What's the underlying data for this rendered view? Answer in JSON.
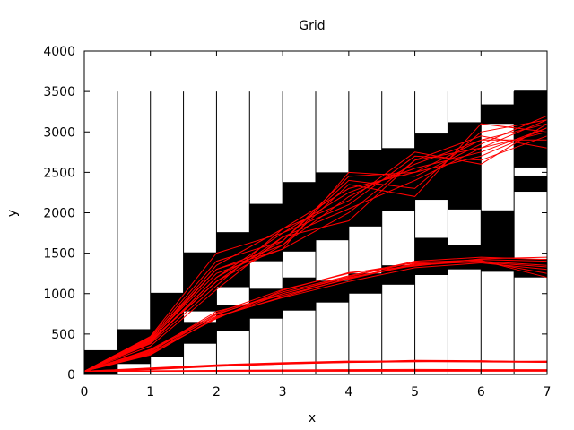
{
  "chart_data": {
    "type": "line",
    "title": "Grid",
    "xlabel": "x",
    "ylabel": "y",
    "xlim": [
      0,
      7
    ],
    "ylim": [
      0,
      4000
    ],
    "x_ticks": [
      "0",
      "1",
      "2",
      "3",
      "4",
      "5",
      "6",
      "7"
    ],
    "y_ticks": [
      "0",
      "500",
      "1000",
      "1500",
      "2000",
      "2500",
      "3000",
      "3500",
      "4000"
    ],
    "grid": {
      "cell_width": 0.5,
      "cell_height": 3500,
      "bands": [
        {
          "x": [
            0.0,
            0.5
          ],
          "black": [
            [
              0,
              300
            ]
          ]
        },
        {
          "x": [
            0.5,
            1.0
          ],
          "black": [
            [
              130,
              560
            ]
          ]
        },
        {
          "x": [
            1.0,
            1.5
          ],
          "black": [
            [
              220,
              1010
            ]
          ]
        },
        {
          "x": [
            1.5,
            2.0
          ],
          "black": [
            [
              380,
              650
            ],
            [
              780,
              1510
            ]
          ]
        },
        {
          "x": [
            2.0,
            2.5
          ],
          "black": [
            [
              540,
              860
            ],
            [
              1080,
              1760
            ]
          ]
        },
        {
          "x": [
            2.5,
            3.0
          ],
          "black": [
            [
              690,
              1060
            ],
            [
              1400,
              2110
            ]
          ]
        },
        {
          "x": [
            3.0,
            3.5
          ],
          "black": [
            [
              790,
              1200
            ],
            [
              1520,
              2380
            ]
          ]
        },
        {
          "x": [
            3.5,
            4.0
          ],
          "black": [
            [
              890,
              1160
            ],
            [
              1660,
              2500
            ]
          ]
        },
        {
          "x": [
            4.0,
            4.5
          ],
          "black": [
            [
              1000,
              1250
            ],
            [
              1830,
              2780
            ]
          ]
        },
        {
          "x": [
            4.5,
            5.0
          ],
          "black": [
            [
              1110,
              1350
            ],
            [
              2020,
              2800
            ]
          ]
        },
        {
          "x": [
            5.0,
            5.5
          ],
          "black": [
            [
              1230,
              1690
            ],
            [
              2160,
              2980
            ]
          ]
        },
        {
          "x": [
            5.5,
            6.0
          ],
          "black": [
            [
              1300,
              1600
            ],
            [
              2040,
              3120
            ]
          ]
        },
        {
          "x": [
            6.0,
            6.5
          ],
          "black": [
            [
              1270,
              2030
            ],
            [
              3100,
              3340
            ]
          ]
        },
        {
          "x": [
            6.5,
            7.0
          ],
          "black": [
            [
              1200,
              1430
            ],
            [
              2260,
              2460
            ],
            [
              2560,
              3510
            ]
          ]
        }
      ]
    },
    "series_color": "#ff0000",
    "series": [
      {
        "x": [
          0,
          1,
          2,
          3,
          4,
          5,
          6,
          7
        ],
        "y": [
          40,
          420,
          1150,
          1700,
          2050,
          2400,
          2800,
          3000
        ]
      },
      {
        "x": [
          0,
          1,
          2,
          3,
          4,
          5,
          6,
          7
        ],
        "y": [
          40,
          450,
          1300,
          1600,
          2200,
          2600,
          2900,
          3100
        ]
      },
      {
        "x": [
          0,
          1,
          2,
          3,
          4,
          5,
          6,
          7
        ],
        "y": [
          40,
          380,
          1100,
          1800,
          2300,
          2500,
          2700,
          3050
        ]
      },
      {
        "x": [
          0,
          1,
          2,
          3,
          4,
          5,
          6,
          7
        ],
        "y": [
          40,
          460,
          1400,
          1650,
          2400,
          2300,
          3000,
          3150
        ]
      },
      {
        "x": [
          0,
          1,
          2,
          3,
          4,
          5,
          6,
          7
        ],
        "y": [
          40,
          400,
          1200,
          1750,
          2100,
          2700,
          2650,
          2950
        ]
      },
      {
        "x": [
          0,
          1,
          2,
          3,
          4,
          5,
          6,
          7
        ],
        "y": [
          40,
          430,
          1250,
          1550,
          2500,
          2450,
          2850,
          3200
        ]
      },
      {
        "x": [
          0,
          1,
          2,
          3,
          4,
          5,
          6,
          7
        ],
        "y": [
          40,
          350,
          1050,
          1700,
          1900,
          2650,
          2950,
          2800
        ]
      },
      {
        "x": [
          0,
          1,
          2,
          3,
          4,
          5,
          6,
          7
        ],
        "y": [
          40,
          470,
          1500,
          1750,
          2250,
          2550,
          2750,
          3050
        ]
      },
      {
        "x": [
          0,
          1,
          2,
          3,
          4,
          5,
          6,
          7
        ],
        "y": [
          40,
          410,
          1150,
          1600,
          2350,
          2200,
          3100,
          3000
        ]
      },
      {
        "x": [
          0,
          1,
          2,
          3,
          4,
          5,
          6,
          7
        ],
        "y": [
          40,
          440,
          1350,
          1800,
          2150,
          2750,
          2600,
          3100
        ]
      },
      {
        "x": [
          0,
          1,
          2,
          3,
          4,
          5,
          6,
          7
        ],
        "y": [
          40,
          390,
          1200,
          1650,
          2450,
          2500,
          2900,
          2900
        ]
      },
      {
        "x": [
          0,
          1,
          2,
          3,
          4,
          5,
          6,
          7
        ],
        "y": [
          40,
          420,
          1300,
          1550,
          2000,
          2650,
          2800,
          3150
        ]
      },
      {
        "x": [
          0,
          1,
          2,
          3,
          4,
          5,
          6,
          7
        ],
        "y": [
          40,
          250,
          700,
          1000,
          1200,
          1350,
          1400,
          1350
        ]
      },
      {
        "x": [
          0,
          1,
          2,
          3,
          4,
          5,
          6,
          7
        ],
        "y": [
          40,
          280,
          760,
          1050,
          1250,
          1380,
          1420,
          1400
        ]
      },
      {
        "x": [
          0,
          1,
          2,
          3,
          4,
          5,
          6,
          7
        ],
        "y": [
          40,
          300,
          720,
          950,
          1150,
          1320,
          1380,
          1300
        ]
      },
      {
        "x": [
          0,
          1,
          2,
          3,
          4,
          5,
          6,
          7
        ],
        "y": [
          40,
          260,
          740,
          1020,
          1220,
          1400,
          1450,
          1420
        ]
      },
      {
        "x": [
          0,
          1,
          2,
          3,
          4,
          5,
          6,
          7
        ],
        "y": [
          40,
          290,
          780,
          980,
          1180,
          1360,
          1400,
          1250
        ]
      },
      {
        "x": [
          0,
          1,
          2,
          3,
          4,
          5,
          6,
          7
        ],
        "y": [
          40,
          270,
          690,
          1040,
          1260,
          1340,
          1430,
          1450
        ]
      },
      {
        "x": [
          0,
          1,
          2,
          3,
          4,
          5,
          6,
          7
        ],
        "y": [
          40,
          310,
          750,
          1000,
          1210,
          1390,
          1410,
          1200
        ]
      },
      {
        "x": [
          0,
          1,
          2,
          3,
          4,
          5,
          6,
          7
        ],
        "y": [
          40,
          240,
          710,
          960,
          1190,
          1370,
          1390,
          1330
        ]
      },
      {
        "x": [
          0,
          1,
          2,
          3,
          4,
          5,
          6,
          7
        ],
        "y": [
          40,
          70,
          110,
          135,
          150,
          160,
          155,
          150
        ]
      },
      {
        "x": [
          0,
          1,
          2,
          3,
          4,
          5,
          6,
          7
        ],
        "y": [
          40,
          75,
          115,
          140,
          160,
          170,
          165,
          160
        ]
      },
      {
        "x": [
          0,
          1,
          2,
          3,
          4,
          5,
          6,
          7
        ],
        "y": [
          40,
          65,
          105,
          130,
          155,
          175,
          170,
          155
        ]
      },
      {
        "x": [
          0,
          1,
          2,
          3,
          4,
          5,
          6,
          7
        ],
        "y": [
          40,
          80,
          120,
          145,
          165,
          165,
          160,
          165
        ]
      },
      {
        "x": [
          0,
          1,
          2,
          3,
          4,
          5,
          6,
          7
        ],
        "y": [
          40,
          60,
          100,
          128,
          148,
          158,
          168,
          150
        ]
      },
      {
        "x": [
          0,
          1,
          2,
          3,
          4,
          5,
          6,
          7
        ],
        "y": [
          40,
          45,
          50,
          55,
          60,
          62,
          60,
          60
        ]
      },
      {
        "x": [
          0,
          1,
          2,
          3,
          4,
          5,
          6,
          7
        ],
        "y": [
          40,
          42,
          45,
          48,
          50,
          52,
          53,
          52
        ]
      },
      {
        "x": [
          0,
          1,
          2,
          3,
          4,
          5,
          6,
          7
        ],
        "y": [
          40,
          40,
          40,
          40,
          40,
          40,
          40,
          40
        ]
      },
      {
        "x": [
          0,
          1,
          2,
          3,
          4,
          5,
          6,
          7
        ],
        "y": [
          40,
          41,
          42,
          42,
          43,
          44,
          44,
          44
        ]
      }
    ]
  }
}
